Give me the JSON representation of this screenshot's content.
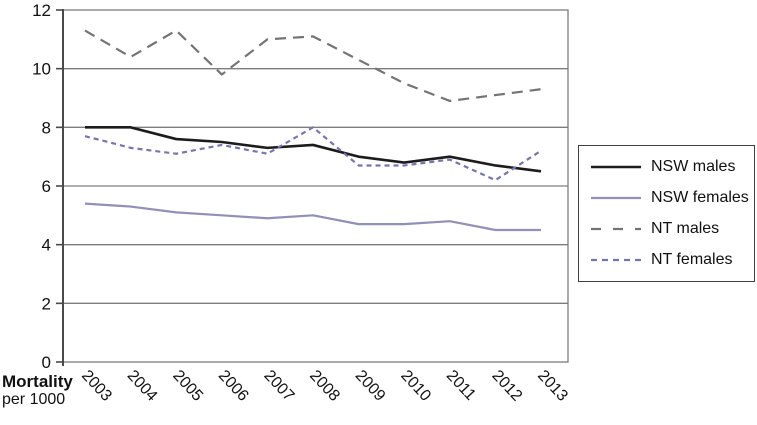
{
  "figure": {
    "ylabel_bold": "Mortality",
    "ylabel_sub": "per 1000"
  },
  "chart_data": {
    "type": "line",
    "title": "",
    "xlabel": "",
    "ylabel": "Mortality per 1000",
    "categories": [
      "2003",
      "2004",
      "2005",
      "2006",
      "2007",
      "2008",
      "2009",
      "2010",
      "2011",
      "2012",
      "2013"
    ],
    "ylim": [
      0,
      12
    ],
    "yticks": [
      0,
      2,
      4,
      6,
      8,
      10,
      12
    ],
    "grid": "horizontal",
    "legend_position": "right",
    "colors": {
      "axis": "#4a4a4a",
      "grid": "#7d7d7d",
      "text": "#111111"
    },
    "series": [
      {
        "name": "NSW males",
        "color": "#1c1c1c",
        "dash": null,
        "legend_dash": null,
        "width": 2.6,
        "values": [
          8.0,
          8.0,
          7.6,
          7.5,
          7.3,
          7.4,
          7.0,
          6.8,
          7.0,
          6.7,
          6.5
        ]
      },
      {
        "name": "NSW females",
        "color": "#9090b8",
        "dash": null,
        "legend_dash": null,
        "width": 2.2,
        "values": [
          5.4,
          5.3,
          5.1,
          5.0,
          4.9,
          5.0,
          4.7,
          4.7,
          4.8,
          4.5,
          4.5
        ]
      },
      {
        "name": "NT males",
        "color": "#747474",
        "dash": "11 7",
        "legend_dash": "10 12",
        "width": 2.2,
        "values": [
          11.3,
          10.4,
          11.3,
          9.8,
          11.0,
          11.1,
          10.3,
          9.5,
          8.9,
          9.1,
          9.3
        ]
      },
      {
        "name": "NT females",
        "color": "#7575b0",
        "dash": "5 4",
        "legend_dash": "6 5",
        "width": 2.2,
        "values": [
          7.7,
          7.3,
          7.1,
          7.4,
          7.1,
          8.0,
          6.7,
          6.7,
          6.9,
          6.2,
          7.2
        ]
      }
    ]
  }
}
